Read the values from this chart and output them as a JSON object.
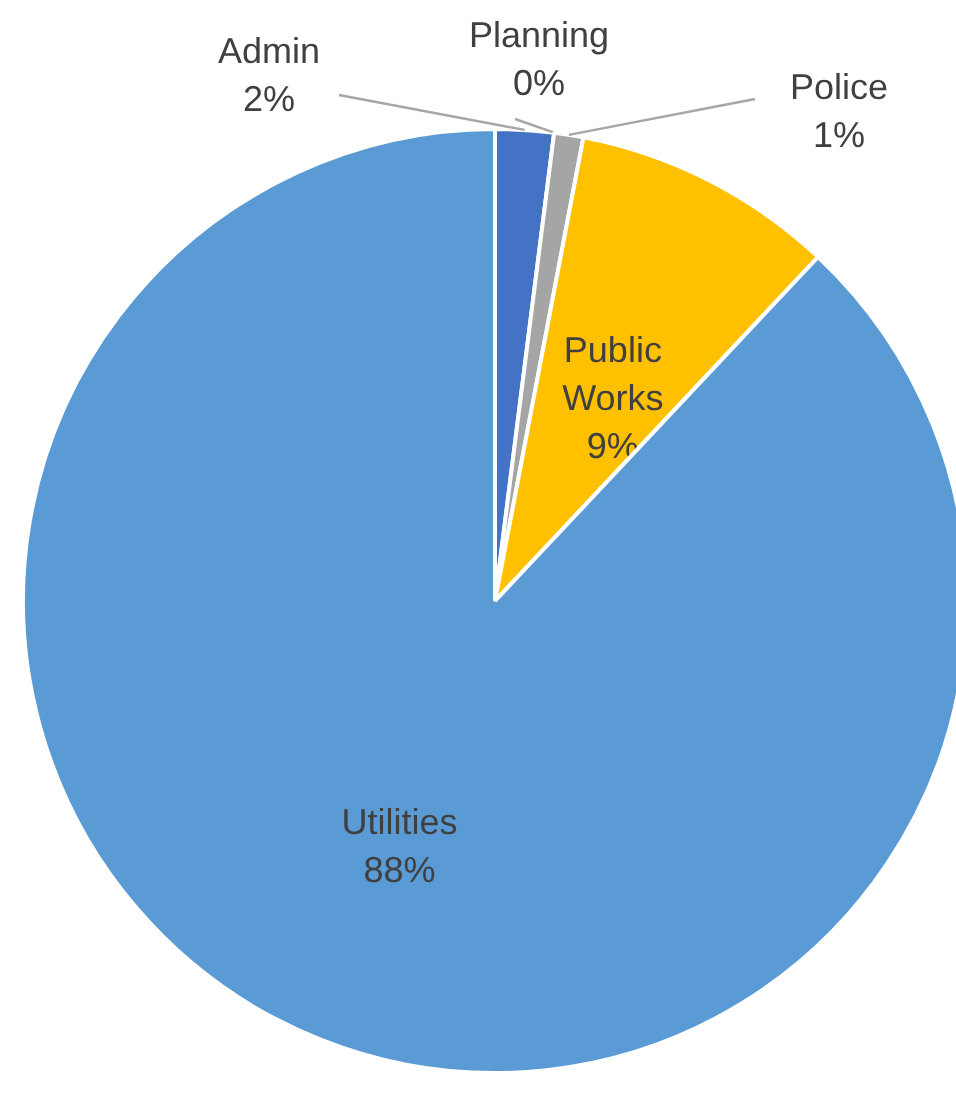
{
  "chart_data": {
    "type": "pie",
    "categories": [
      "Admin",
      "Planning",
      "Police",
      "Public Works",
      "Utilities"
    ],
    "values": [
      2,
      0,
      1,
      9,
      88
    ],
    "colors": [
      "#4472c4",
      "#ed7d31",
      "#a5a5a5",
      "#ffc000",
      "#5b9bd5"
    ],
    "value_labels": [
      "2%",
      "0%",
      "1%",
      "9%",
      "88%"
    ]
  }
}
